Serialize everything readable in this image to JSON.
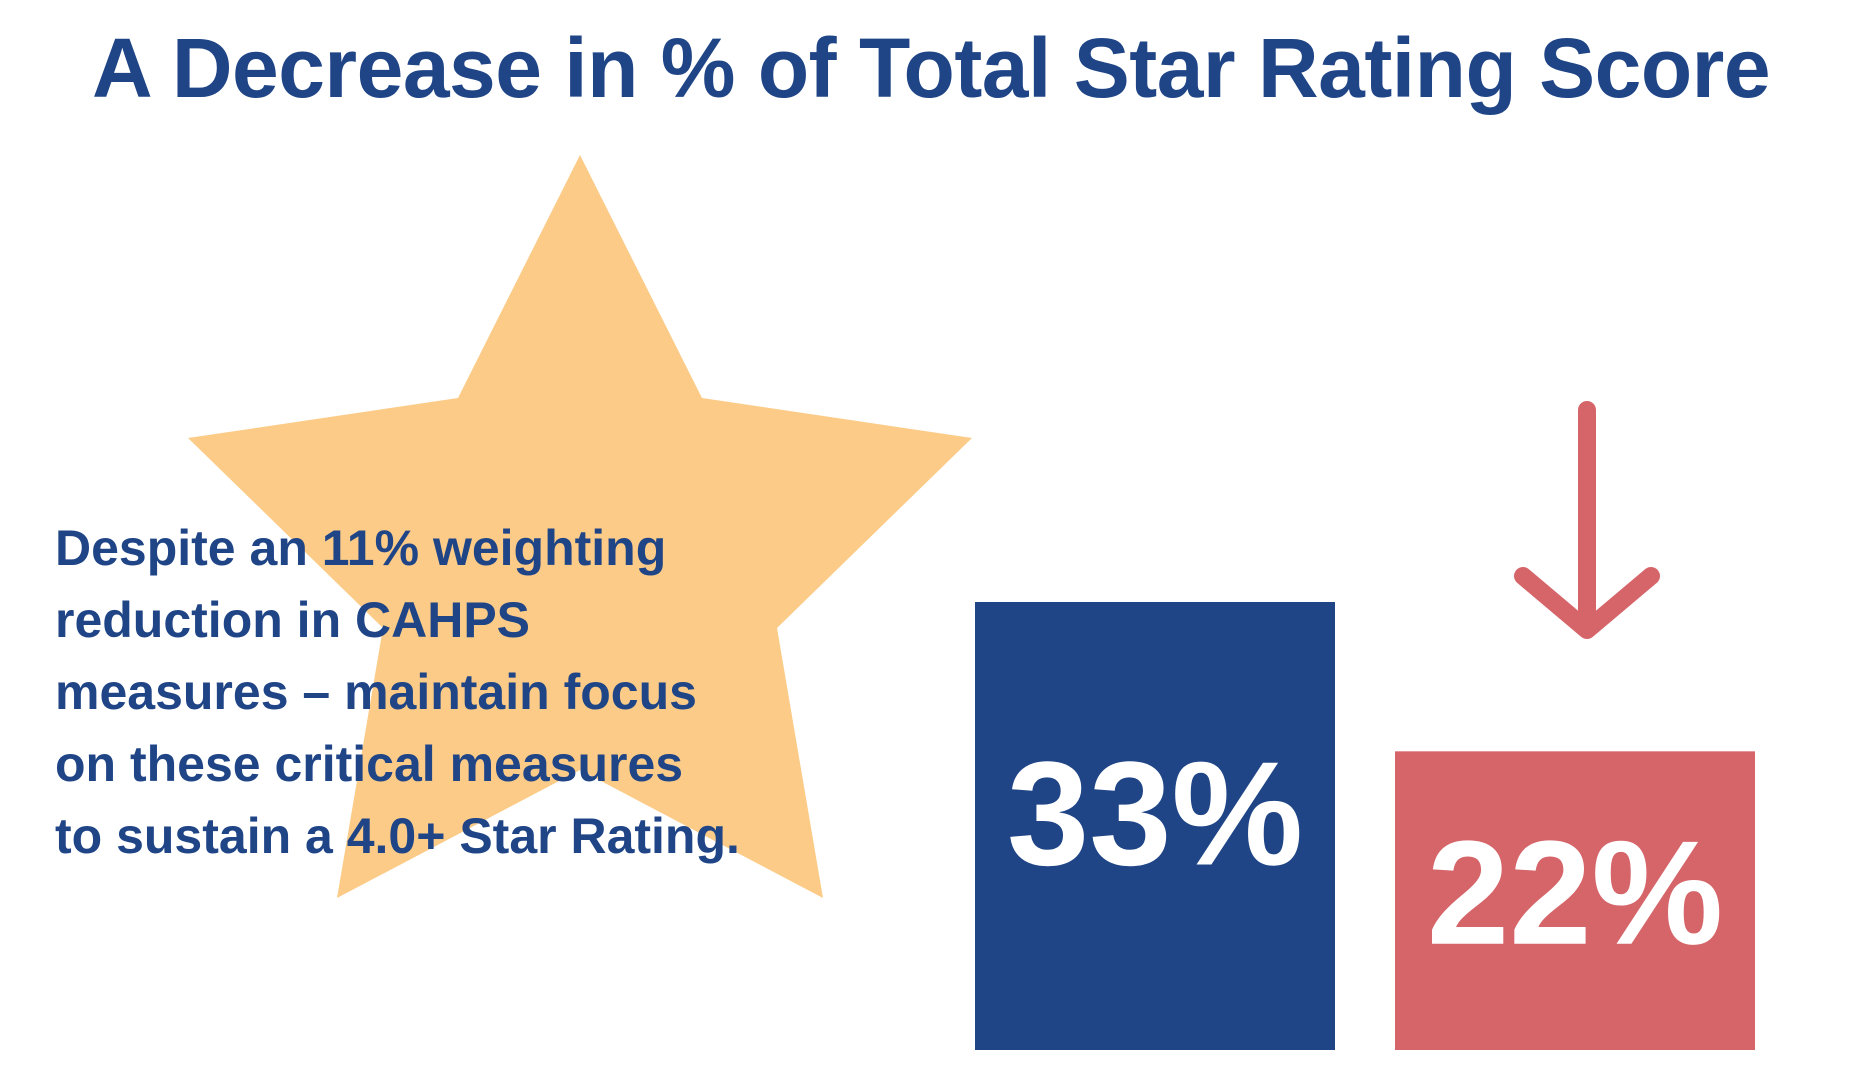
{
  "title": "A Decrease in % of Total Star Rating Score",
  "message_lines": [
    "Despite an 11% weighting",
    "reduction in CAHPS",
    "measures – maintain focus",
    "on these critical measures",
    "to sustain a 4.0+ Star Rating."
  ],
  "colors": {
    "title": "#1f4587",
    "star": "#fbcb87",
    "bar_before": "#1f4587",
    "bar_after": "#d6656a",
    "arrow": "#d6656a"
  },
  "icons": {
    "star": "star-shape",
    "arrow": "down-arrow-icon"
  },
  "chart_data": {
    "type": "bar",
    "categories": [
      "",
      ""
    ],
    "values": [
      33,
      22
    ],
    "value_labels": [
      "33%",
      "22%"
    ],
    "ylim": [
      0,
      33
    ],
    "grid": false,
    "legend": "none"
  }
}
